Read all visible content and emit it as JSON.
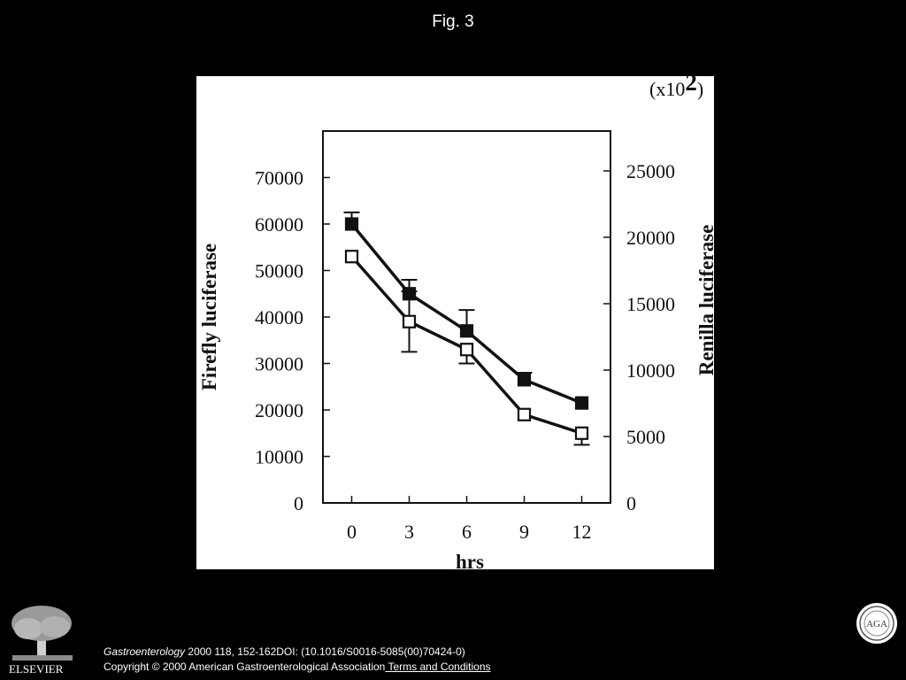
{
  "page": {
    "figure_label": "Fig. 3"
  },
  "footer": {
    "journal": "Gastroenterology",
    "citation_rest": " 2000 118, 152-162",
    "doi": "DOI: (10.1016/S0016-5085(00)70424-0)",
    "copyright": "Copyright © 2000 American Gastroenterological Association",
    "terms_link": " Terms and Conditions"
  },
  "publisher": {
    "logo_text": "ELSEVIER",
    "logo_icon": "elsevier-tree-icon",
    "seal_icon": "aga-seal-icon",
    "seal_text": "AGA"
  },
  "chart_data": {
    "type": "line",
    "xlabel": "hrs",
    "ylabel_left": "Firefly luciferase",
    "ylabel_right": "Renilla luciferase",
    "right_axis_multiplier": "(x10",
    "right_axis_exponent": "2",
    "right_axis_multiplier_close": ")",
    "x": [
      0,
      3,
      6,
      9,
      12
    ],
    "x_ticks": [
      "0",
      "3",
      "6",
      "9",
      "12"
    ],
    "xlim": [
      -1.5,
      13.5
    ],
    "ylim_left": [
      0,
      80000
    ],
    "ylim_right": [
      0,
      28000
    ],
    "y_ticks_left": [
      "0",
      "10000",
      "20000",
      "30000",
      "40000",
      "50000",
      "60000",
      "70000"
    ],
    "y_ticks_right": [
      "0",
      "5000",
      "10000",
      "15000",
      "20000",
      "25000"
    ],
    "grid": false,
    "series": [
      {
        "marker": "filled-square",
        "axis": "left",
        "values": [
          60000,
          45000,
          37000,
          26500,
          21500
        ],
        "error": [
          2500,
          3000,
          4500,
          1500,
          0
        ]
      },
      {
        "marker": "open-square",
        "axis": "left",
        "values": [
          53000,
          39000,
          33000,
          19000,
          15000
        ],
        "error": [
          0,
          6500,
          3000,
          0,
          2500
        ]
      }
    ],
    "colors": {
      "line": "#111111",
      "marker_fill": "#111111",
      "open_fill": "#ffffff"
    }
  }
}
